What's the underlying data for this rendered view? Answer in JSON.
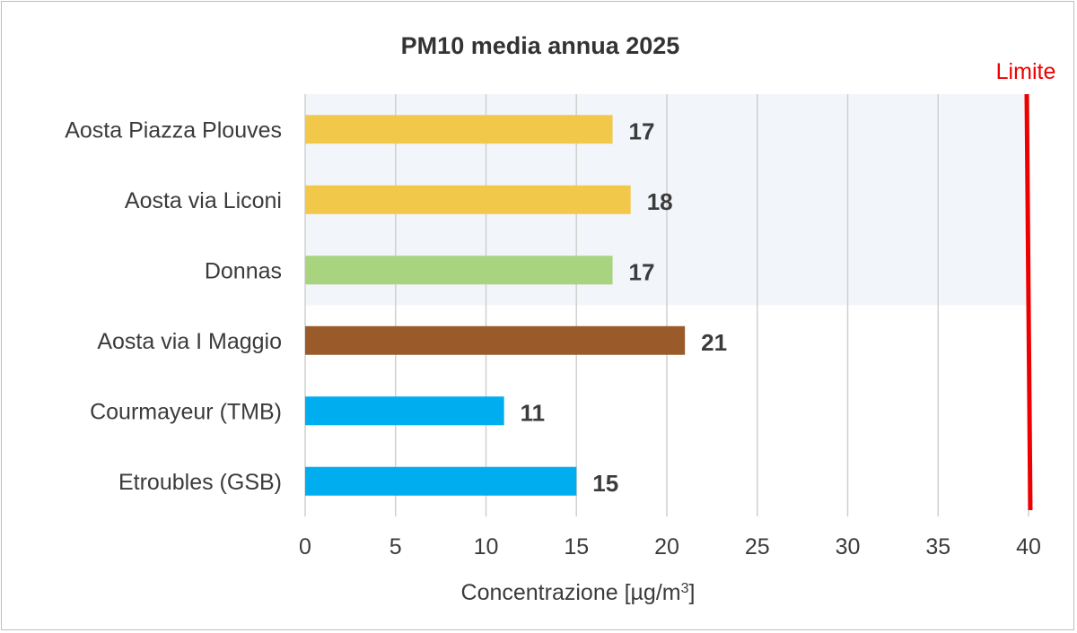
{
  "chart_data": {
    "type": "bar",
    "orientation": "horizontal",
    "title": "PM10 media annua 2025",
    "xlabel": "Concentrazione [µg/m",
    "xlabel_superscript": "3",
    "xlabel_suffix": "]",
    "ylabel": "",
    "xlim": [
      0,
      40
    ],
    "xticks": [
      0,
      5,
      10,
      15,
      20,
      25,
      30,
      35,
      40
    ],
    "grid": "vertical",
    "categories": [
      "Aosta Piazza Plouves",
      "Aosta via Liconi",
      "Donnas",
      "Aosta via I Maggio",
      "Courmayeur (TMB)",
      "Etroubles (GSB)"
    ],
    "values": [
      17,
      18,
      17,
      21,
      11,
      15
    ],
    "bar_colors": [
      "#f2c84b",
      "#f2c84b",
      "#a9d47f",
      "#9a5a2a",
      "#00aeef",
      "#00aeef"
    ],
    "highlight_band": {
      "categories": [
        "Aosta Piazza Plouves",
        "Aosta via Liconi",
        "Donnas"
      ],
      "color": "#f2f5fa"
    },
    "limit_line": {
      "value": 40,
      "label": "Limite",
      "color": "#ee0000"
    }
  }
}
